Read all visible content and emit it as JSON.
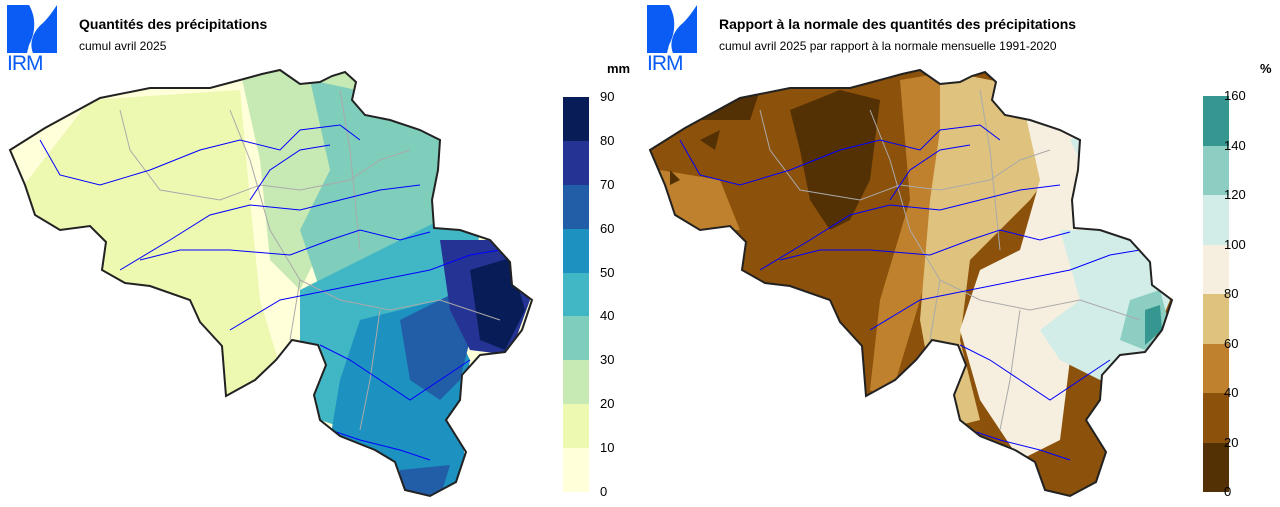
{
  "left": {
    "logo": "IRM",
    "title": "Quantités des précipitations",
    "subtitle": "cumul avril 2025",
    "unit": "mm",
    "legend": {
      "ticks": [
        "0",
        "10",
        "20",
        "30",
        "40",
        "50",
        "60",
        "70",
        "80",
        "90"
      ],
      "colors": [
        "#ffffd9",
        "#edf8b1",
        "#c7e9b4",
        "#7fcdbb",
        "#41b6c4",
        "#1d91c0",
        "#225ea8",
        "#253494",
        "#081d58"
      ]
    }
  },
  "right": {
    "logo": "IRM",
    "title": "Rapport à la normale des quantités des précipitations",
    "subtitle": "cumul avril 2025 par rapport à la normale mensuelle 1991-2020",
    "unit": "%",
    "legend": {
      "ticks": [
        "0",
        "20",
        "40",
        "60",
        "80",
        "100",
        "120",
        "140",
        "160"
      ],
      "colors": [
        "#543005",
        "#8c510a",
        "#bf812d",
        "#dfc27d",
        "#f6efdf",
        "#d2ece8",
        "#8ccfc2",
        "#35978f"
      ]
    }
  },
  "colors": {
    "logo": "#0a5cf5",
    "river": "#0000ff",
    "border": "#aaaaaa",
    "outline": "#222222"
  }
}
